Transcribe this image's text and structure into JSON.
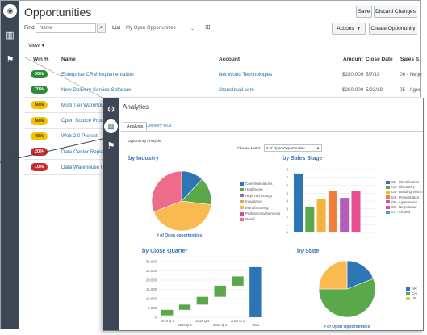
{
  "back": {
    "title": "Opportunities",
    "save_label": "Save",
    "discard_label": "Discard Changes",
    "find_label": "Find",
    "find_placeholder": "Name",
    "list_label": "List",
    "list_value": "My Open Opportunities",
    "actions_label": "Actions",
    "create_label": "Create Opportunity",
    "view_label": "View",
    "columns": [
      "Win %",
      "Name",
      "Account",
      "Amount",
      "Close Date",
      "Sales S"
    ],
    "rows": [
      {
        "win": "90%",
        "win_color": "#2e8b3c",
        "name": "Enterprise CRM Implementation",
        "account": "Net World Technologies",
        "amount": "$280,000",
        "close": "5/7/19",
        "stage": "06 - Nego"
      },
      {
        "win": "70%",
        "win_color": "#2e8b3c",
        "name": "New Delivery Service Software",
        "account": "Store2mail.com",
        "amount": "$280,000",
        "close": "5/23/19",
        "stage": "05 - Agre"
      },
      {
        "win": "50%",
        "win_color": "#f2c200",
        "name": "Multi Tier Warehouse",
        "account": "",
        "amount": "",
        "close": "",
        "stage": ""
      },
      {
        "win": "50%",
        "win_color": "#f2c200",
        "name": "Open Source Produ",
        "account": "",
        "amount": "",
        "close": "",
        "stage": ""
      },
      {
        "win": "40%",
        "win_color": "#f2c200",
        "name": "Web 2.0 Project",
        "account": "",
        "amount": "",
        "close": "",
        "stage": ""
      },
      {
        "win": "20%",
        "win_color": "#c92c2c",
        "name": "Data Center Replac",
        "account": "",
        "amount": "",
        "close": "",
        "stage": ""
      },
      {
        "win": "10%",
        "win_color": "#c92c2c",
        "name": "Data Warehouse In",
        "account": "",
        "amount": "",
        "close": "",
        "stage": ""
      }
    ]
  },
  "front": {
    "title": "Analytics",
    "tabs": [
      "Analysis",
      "Delivery ROI"
    ],
    "report_label": "Opportunity Analysis",
    "choose_label": "Choose Metric",
    "choose_value": "# of Open Opportunities",
    "cards": {
      "industry": "by Industry",
      "stage": "by Sales Stage",
      "quarter": "by Close Quarter",
      "state": "by State"
    },
    "industry_caption": "# of Open opportunities",
    "state_caption": "# of Open Opportunities"
  },
  "chart_data": [
    {
      "type": "pie",
      "title": "by Industry",
      "labels": [
        "Communications",
        "Healthcare",
        "High Technology",
        "Insurance",
        "Manufacturing",
        "Professional Services",
        "Retail"
      ],
      "values": [
        12,
        15,
        0,
        0,
        42,
        0,
        31
      ],
      "colors": [
        "#2e75b6",
        "#5aa84a",
        "#8f6cb8",
        "#f0a040",
        "#f9bb50",
        "#d84a8e",
        "#ef6b8a"
      ]
    },
    {
      "type": "bar",
      "title": "by Sales Stage",
      "ylim": [
        0,
        8
      ],
      "ticks": [
        0,
        1,
        2,
        3,
        4,
        5,
        6,
        7,
        8
      ],
      "series": [
        {
          "name": "01 - Identification",
          "color": "#2e75b6",
          "values": [
            7.5
          ]
        },
        {
          "name": "02 - Discovery",
          "color": "#5aa84a",
          "values": [
            3.3
          ]
        },
        {
          "name": "03 - Building Vision",
          "color": "#f4b43c",
          "values": [
            4.3
          ]
        },
        {
          "name": "04 - Presentation",
          "color": "#f07f3c",
          "values": [
            5.3
          ]
        },
        {
          "name": "05 - Agreement",
          "color": "#b45cb8",
          "values": [
            4.4
          ]
        },
        {
          "name": "06 - Negotiation",
          "color": "#e94f8e",
          "values": [
            5.3
          ]
        },
        {
          "name": "07 - Closed",
          "color": "#4a9dd8",
          "values": [
            0
          ]
        }
      ]
    },
    {
      "type": "bar",
      "title": "by Close Quarter",
      "categories": [
        "2019 Q 2",
        "2019 Q 3",
        "2019 Q 4",
        "2019 Q 1",
        "2020 Q 2",
        "Total"
      ],
      "ticks": [
        0,
        5000,
        10000,
        15000,
        20000,
        25000,
        30000
      ],
      "tick_labels": [
        "0",
        "5,000",
        "10,000",
        "15,000",
        "20,000",
        "25,000",
        "30,000"
      ],
      "ylim": [
        0,
        30000
      ],
      "waterfall": [
        [
          1000,
          4000
        ],
        [
          4000,
          6800
        ],
        [
          6800,
          11000
        ],
        [
          11000,
          17000
        ],
        [
          17000,
          22000
        ],
        [
          0,
          27000
        ]
      ],
      "colors": [
        "#5aa84a",
        "#5aa84a",
        "#5aa84a",
        "#5aa84a",
        "#5aa84a",
        "#2e75b6"
      ]
    },
    {
      "type": "pie",
      "title": "by State",
      "labels": [
        "AK",
        "CA",
        "VA"
      ],
      "values": [
        19,
        56,
        25
      ],
      "colors": [
        "#2e75b6",
        "#5aa84a",
        "#f9bb50"
      ]
    }
  ]
}
